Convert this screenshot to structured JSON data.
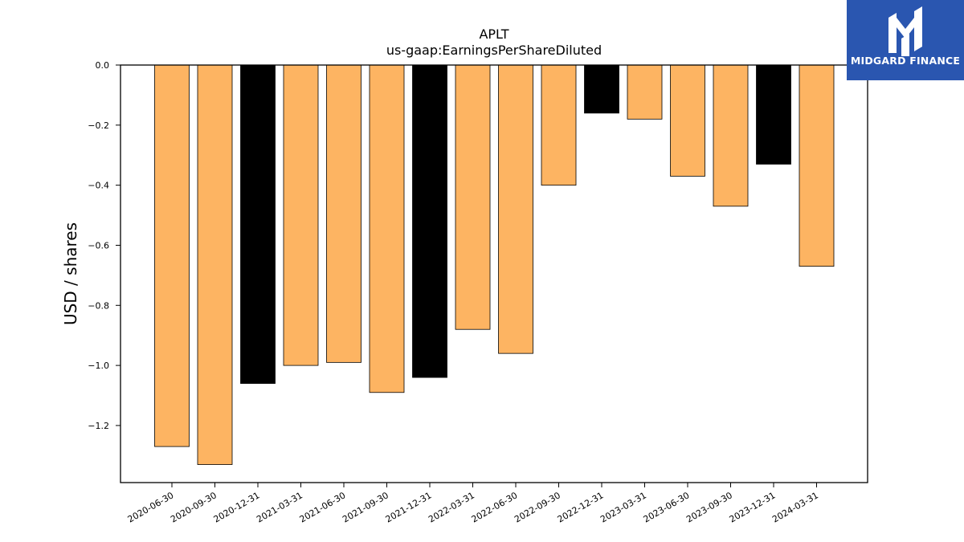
{
  "brand": {
    "name": "MIDGARD FINANCE",
    "bg_color": "#2a56b0"
  },
  "chart_data": {
    "type": "bar",
    "title": "APLT",
    "subtitle": "us-gaap:EarningsPerShareDiluted",
    "xlabel": "",
    "ylabel": "USD / shares",
    "ylim": [
      -1.39,
      0.0
    ],
    "yticks": [
      0.0,
      -0.2,
      -0.4,
      -0.6,
      -0.8,
      -1.0,
      -1.2
    ],
    "ytick_labels": [
      "0.0",
      "−0.2",
      "−0.4",
      "−0.6",
      "−0.8",
      "−1.0",
      "−1.2"
    ],
    "grid": false,
    "categories": [
      "2020-06-30",
      "2020-09-30",
      "2020-12-31",
      "2021-03-31",
      "2021-06-30",
      "2021-09-30",
      "2021-12-31",
      "2022-03-31",
      "2022-06-30",
      "2022-09-30",
      "2022-12-31",
      "2023-03-31",
      "2023-06-30",
      "2023-09-30",
      "2023-12-31",
      "2024-03-31"
    ],
    "values": [
      -1.27,
      -1.33,
      -1.06,
      -1.0,
      -0.99,
      -1.09,
      -1.04,
      -0.88,
      -0.96,
      -0.4,
      -0.16,
      -0.18,
      -0.37,
      -0.47,
      -0.33,
      -0.67
    ],
    "bar_colors": [
      "#fdb462",
      "#fdb462",
      "#000000",
      "#fdb462",
      "#fdb462",
      "#fdb462",
      "#000000",
      "#fdb462",
      "#fdb462",
      "#fdb462",
      "#000000",
      "#fdb462",
      "#fdb462",
      "#fdb462",
      "#000000",
      "#fdb462"
    ]
  }
}
